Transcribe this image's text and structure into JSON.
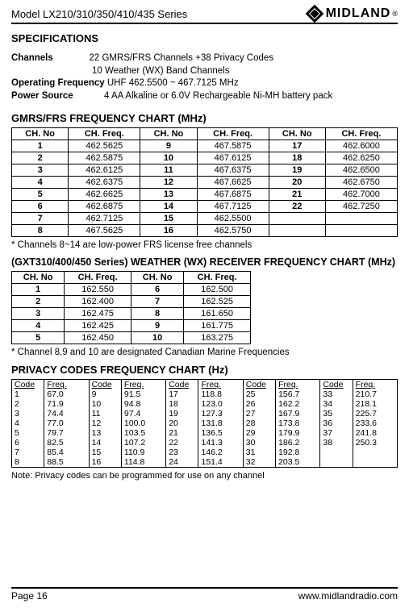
{
  "header": {
    "model": "Model LX210/310/350/410/435 Series",
    "brand": "MIDLAND",
    "reg": "®"
  },
  "spec_title": "SPECIFICATIONS",
  "channels_label": "Channels",
  "channels_val": "22 GMRS/FRS Channels +38 Privacy Codes",
  "channels_val2": "10 Weather (WX) Band Channels",
  "opfreq_label": "Operating Frequency",
  "opfreq_val": " UHF 462.5500 ~ 467.7125 MHz",
  "power_label": "Power Source",
  "power_val": "4 AA Alkaline or 6.0V Rechargeable Ni-MH battery pack",
  "gmrs_title": "GMRS/FRS FREQUENCY CHART (MHz)",
  "gmrs_headers": [
    "CH.  No",
    "CH. Freq.",
    "CH.  No",
    "CH. Freq.",
    "CH.  No",
    "CH. Freq."
  ],
  "gmrs_rows": [
    [
      "1",
      "462.5625",
      "9",
      "467.5875",
      "17",
      "462.6000"
    ],
    [
      "2",
      "462.5875",
      "10",
      "467.6125",
      "18",
      "462.6250"
    ],
    [
      "3",
      "462.6125",
      "11",
      "467.6375",
      "19",
      "462.6500"
    ],
    [
      "4",
      "462.6375",
      "12",
      "467.6625",
      "20",
      "462.6750"
    ],
    [
      "5",
      "462.6625",
      "13",
      "467.6875",
      "21",
      "462.7000"
    ],
    [
      "6",
      "462.6875",
      "14",
      "467.7125",
      "22",
      "462.7250"
    ],
    [
      "7",
      "462.7125",
      "15",
      "462.5500",
      "",
      ""
    ],
    [
      "8",
      "467.5625",
      "16",
      "462.5750",
      "",
      ""
    ]
  ],
  "gmrs_note": "* Channels 8~14 are low-power FRS license free channels",
  "wx_title": "(GXT310/400/450 Series) WEATHER (WX) RECEIVER FREQUENCY CHART (MHz)",
  "wx_headers": [
    "CH.  No",
    "CH. Freq.",
    "CH.  No",
    "CH. Freq."
  ],
  "wx_rows": [
    [
      "1",
      "162.550",
      "6",
      "162.500"
    ],
    [
      "2",
      "162.400",
      "7",
      "162.525"
    ],
    [
      "3",
      "162.475",
      "8",
      "161.650"
    ],
    [
      "4",
      "162.425",
      "9",
      "161.775"
    ],
    [
      "5",
      "162.450",
      "10",
      "163.275"
    ]
  ],
  "wx_note": "* Channel 8,9 and 10 are designated Canadian Marine Frequencies",
  "priv_title": "PRIVACY CODES FREQUENCY CHART (Hz)",
  "priv_headers": [
    "Code",
    "Freq.",
    "Code",
    "Freq.",
    "Code",
    "Freq.",
    "Code",
    "Freq.",
    "Code",
    "Freq."
  ],
  "priv_rows": [
    [
      "1",
      "67.0",
      "9",
      "91.5",
      "17",
      "118.8",
      "25",
      "156.7",
      "33",
      "210.7"
    ],
    [
      "2",
      "71.9",
      "10",
      "94.8",
      "18",
      "123.0",
      "26",
      "162.2",
      "34",
      "218.1"
    ],
    [
      "3",
      "74.4",
      "11",
      "97.4",
      "19",
      "127.3",
      "27",
      "167.9",
      "35",
      "225.7"
    ],
    [
      "4",
      "77.0",
      "12",
      "100.0",
      "20",
      "131.8",
      "28",
      "173.8",
      "36",
      "233.6"
    ],
    [
      "5",
      "79.7",
      "13",
      "103.5",
      "21",
      "136.5",
      "29",
      "179.9",
      "37",
      "241.8"
    ],
    [
      "6",
      "82.5",
      "14",
      "107.2",
      "22",
      "141.3",
      "30",
      "186.2",
      "38",
      "250.3"
    ],
    [
      "7",
      "85.4",
      "15",
      "110.9",
      "23",
      "146.2",
      "31",
      "192.8",
      "",
      ""
    ],
    [
      "8",
      "88.5",
      "16",
      "114.8",
      "24",
      "151.4",
      "32",
      "203.5",
      "",
      ""
    ]
  ],
  "priv_note": "Note:  Privacy codes can be programmed for use on any channel",
  "footer_left": "Page 16",
  "footer_right": "www.midlandradio.com"
}
